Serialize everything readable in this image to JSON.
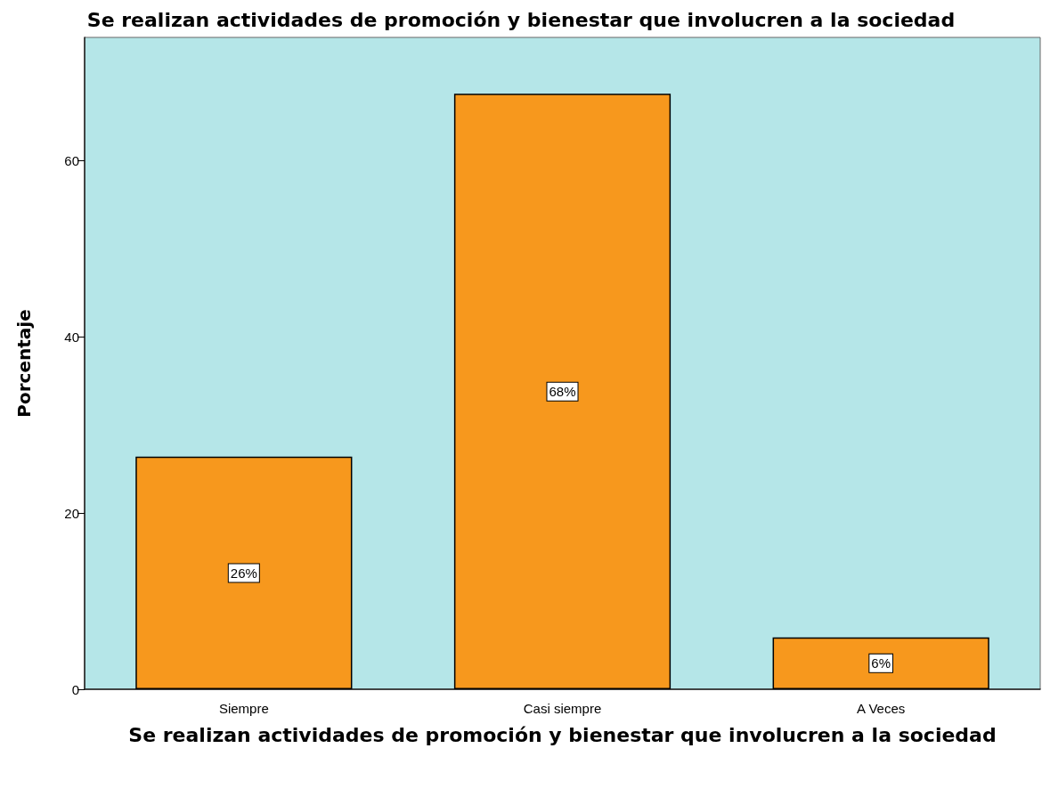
{
  "chart_data": {
    "type": "bar",
    "title": "Se realizan actividades de promoción y bienestar que involucren a la sociedad",
    "xlabel": "Se realizan actividades de promoción y bienestar que involucren a la sociedad",
    "ylabel": "Porcentaje",
    "categories": [
      "Siempre",
      "Casi siempre",
      "A Veces"
    ],
    "values": [
      26.4,
      67.6,
      5.9
    ],
    "color": "#f7981d",
    "value_labels": [
      "26%",
      "68%",
      "6%"
    ],
    "ylim": [
      0,
      74
    ],
    "yticks": [
      0,
      20,
      40,
      60
    ]
  }
}
